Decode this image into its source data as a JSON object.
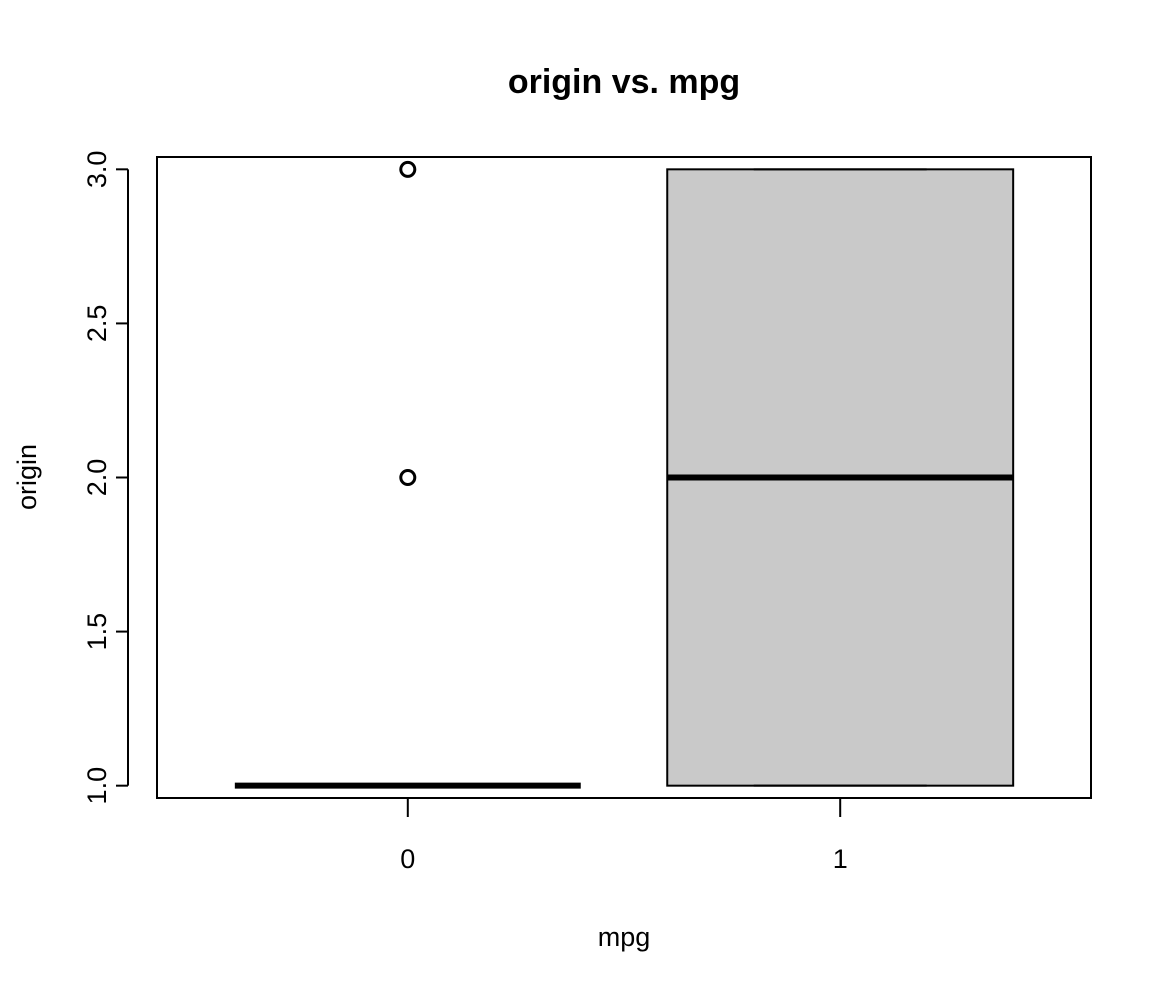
{
  "chart_data": {
    "type": "boxplot",
    "title": "origin vs. mpg",
    "xlabel": "mpg",
    "ylabel": "origin",
    "categories": [
      "0",
      "1"
    ],
    "yticks": [
      "1.0",
      "1.5",
      "2.0",
      "2.5",
      "3.0"
    ],
    "ylim": [
      0.96,
      3.04
    ],
    "grid": false,
    "boxes": [
      {
        "category": "0",
        "min": 1,
        "q1": 1,
        "median": 1,
        "q3": 1,
        "max": 1,
        "outliers": [
          2,
          3
        ],
        "fill": "#ffffff"
      },
      {
        "category": "1",
        "min": 1,
        "q1": 1,
        "median": 2,
        "q3": 3,
        "max": 3,
        "outliers": [],
        "fill": "#c9c9c9"
      }
    ]
  }
}
